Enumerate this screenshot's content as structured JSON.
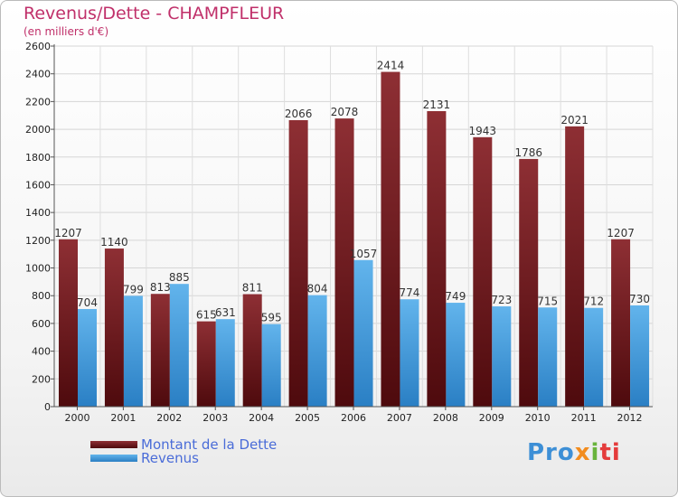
{
  "header": {
    "title": "Revenus/Dette - CHAMPFLEUR",
    "subtitle": "(en milliers d'€)"
  },
  "legend": {
    "items": [
      {
        "label": "Montant de la Dette",
        "color": "#7a1a1e"
      },
      {
        "label": "Revenus",
        "color": "#3b97dc"
      }
    ]
  },
  "logo": {
    "parts": [
      "Pro",
      "x",
      "i",
      "ti"
    ]
  },
  "chart_data": {
    "type": "bar",
    "title": "Revenus/Dette - CHAMPFLEUR",
    "subtitle": "(en milliers d'€)",
    "xlabel": "",
    "ylabel": "",
    "ylim": [
      0,
      2600
    ],
    "ytick_step": 200,
    "grid": true,
    "legend_position": "bottom-left",
    "categories": [
      "2000",
      "2001",
      "2002",
      "2003",
      "2004",
      "2005",
      "2006",
      "2007",
      "2008",
      "2009",
      "2010",
      "2011",
      "2012"
    ],
    "series": [
      {
        "name": "Montant de la Dette",
        "color": "#7a1a1e",
        "values": [
          1207,
          1140,
          813,
          615,
          811,
          2066,
          2078,
          2414,
          2131,
          1943,
          1786,
          2021,
          1207
        ]
      },
      {
        "name": "Revenus",
        "color": "#3b97dc",
        "values": [
          704,
          799,
          885,
          631,
          595,
          804,
          1057,
          774,
          749,
          723,
          715,
          712,
          730
        ]
      }
    ]
  }
}
